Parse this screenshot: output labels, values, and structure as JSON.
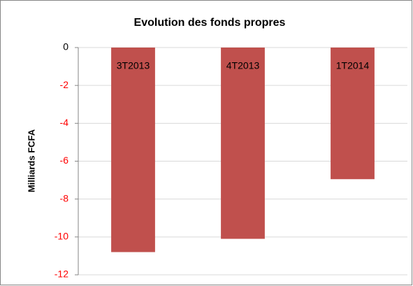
{
  "chart_data": {
    "type": "bar",
    "title": "Evolution des fonds propres",
    "y_label": "Milliards FCFA",
    "categories": [
      "3T2013",
      "4T2013",
      "1T2014"
    ],
    "values": [
      -10.8,
      -10.1,
      -6.95
    ],
    "color": "#c0504d",
    "ylim": [
      -12,
      0
    ],
    "yticks": [
      0,
      -2,
      -4,
      -6,
      -8,
      -10,
      -12
    ],
    "grid": true,
    "negative_tick_color": "#ff0000"
  }
}
